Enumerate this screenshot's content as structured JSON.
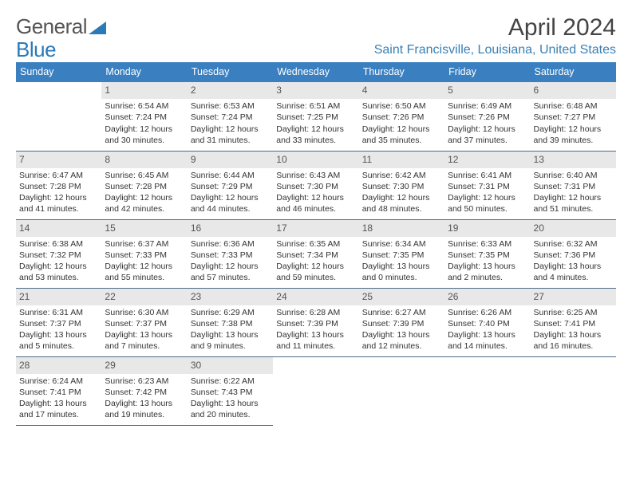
{
  "logo": {
    "text_a": "General",
    "text_b": "Blue"
  },
  "title": "April 2024",
  "location": "Saint Francisville, Louisiana, United States",
  "colors": {
    "header_bg": "#3a80c1",
    "header_fg": "#ffffff",
    "daynum_bg": "#e8e8e8",
    "daynum_fg": "#555555",
    "border": "#4d6a8a",
    "location": "#3a80b5",
    "logo_gray": "#555555",
    "logo_blue": "#2a7ab8"
  },
  "weekdays": [
    "Sunday",
    "Monday",
    "Tuesday",
    "Wednesday",
    "Thursday",
    "Friday",
    "Saturday"
  ],
  "weeks": [
    [
      {
        "empty": true
      },
      {
        "n": "1",
        "sr": "Sunrise: 6:54 AM",
        "ss": "Sunset: 7:24 PM",
        "d1": "Daylight: 12 hours",
        "d2": "and 30 minutes."
      },
      {
        "n": "2",
        "sr": "Sunrise: 6:53 AM",
        "ss": "Sunset: 7:24 PM",
        "d1": "Daylight: 12 hours",
        "d2": "and 31 minutes."
      },
      {
        "n": "3",
        "sr": "Sunrise: 6:51 AM",
        "ss": "Sunset: 7:25 PM",
        "d1": "Daylight: 12 hours",
        "d2": "and 33 minutes."
      },
      {
        "n": "4",
        "sr": "Sunrise: 6:50 AM",
        "ss": "Sunset: 7:26 PM",
        "d1": "Daylight: 12 hours",
        "d2": "and 35 minutes."
      },
      {
        "n": "5",
        "sr": "Sunrise: 6:49 AM",
        "ss": "Sunset: 7:26 PM",
        "d1": "Daylight: 12 hours",
        "d2": "and 37 minutes."
      },
      {
        "n": "6",
        "sr": "Sunrise: 6:48 AM",
        "ss": "Sunset: 7:27 PM",
        "d1": "Daylight: 12 hours",
        "d2": "and 39 minutes."
      }
    ],
    [
      {
        "n": "7",
        "sr": "Sunrise: 6:47 AM",
        "ss": "Sunset: 7:28 PM",
        "d1": "Daylight: 12 hours",
        "d2": "and 41 minutes."
      },
      {
        "n": "8",
        "sr": "Sunrise: 6:45 AM",
        "ss": "Sunset: 7:28 PM",
        "d1": "Daylight: 12 hours",
        "d2": "and 42 minutes."
      },
      {
        "n": "9",
        "sr": "Sunrise: 6:44 AM",
        "ss": "Sunset: 7:29 PM",
        "d1": "Daylight: 12 hours",
        "d2": "and 44 minutes."
      },
      {
        "n": "10",
        "sr": "Sunrise: 6:43 AM",
        "ss": "Sunset: 7:30 PM",
        "d1": "Daylight: 12 hours",
        "d2": "and 46 minutes."
      },
      {
        "n": "11",
        "sr": "Sunrise: 6:42 AM",
        "ss": "Sunset: 7:30 PM",
        "d1": "Daylight: 12 hours",
        "d2": "and 48 minutes."
      },
      {
        "n": "12",
        "sr": "Sunrise: 6:41 AM",
        "ss": "Sunset: 7:31 PM",
        "d1": "Daylight: 12 hours",
        "d2": "and 50 minutes."
      },
      {
        "n": "13",
        "sr": "Sunrise: 6:40 AM",
        "ss": "Sunset: 7:31 PM",
        "d1": "Daylight: 12 hours",
        "d2": "and 51 minutes."
      }
    ],
    [
      {
        "n": "14",
        "sr": "Sunrise: 6:38 AM",
        "ss": "Sunset: 7:32 PM",
        "d1": "Daylight: 12 hours",
        "d2": "and 53 minutes."
      },
      {
        "n": "15",
        "sr": "Sunrise: 6:37 AM",
        "ss": "Sunset: 7:33 PM",
        "d1": "Daylight: 12 hours",
        "d2": "and 55 minutes."
      },
      {
        "n": "16",
        "sr": "Sunrise: 6:36 AM",
        "ss": "Sunset: 7:33 PM",
        "d1": "Daylight: 12 hours",
        "d2": "and 57 minutes."
      },
      {
        "n": "17",
        "sr": "Sunrise: 6:35 AM",
        "ss": "Sunset: 7:34 PM",
        "d1": "Daylight: 12 hours",
        "d2": "and 59 minutes."
      },
      {
        "n": "18",
        "sr": "Sunrise: 6:34 AM",
        "ss": "Sunset: 7:35 PM",
        "d1": "Daylight: 13 hours",
        "d2": "and 0 minutes."
      },
      {
        "n": "19",
        "sr": "Sunrise: 6:33 AM",
        "ss": "Sunset: 7:35 PM",
        "d1": "Daylight: 13 hours",
        "d2": "and 2 minutes."
      },
      {
        "n": "20",
        "sr": "Sunrise: 6:32 AM",
        "ss": "Sunset: 7:36 PM",
        "d1": "Daylight: 13 hours",
        "d2": "and 4 minutes."
      }
    ],
    [
      {
        "n": "21",
        "sr": "Sunrise: 6:31 AM",
        "ss": "Sunset: 7:37 PM",
        "d1": "Daylight: 13 hours",
        "d2": "and 5 minutes."
      },
      {
        "n": "22",
        "sr": "Sunrise: 6:30 AM",
        "ss": "Sunset: 7:37 PM",
        "d1": "Daylight: 13 hours",
        "d2": "and 7 minutes."
      },
      {
        "n": "23",
        "sr": "Sunrise: 6:29 AM",
        "ss": "Sunset: 7:38 PM",
        "d1": "Daylight: 13 hours",
        "d2": "and 9 minutes."
      },
      {
        "n": "24",
        "sr": "Sunrise: 6:28 AM",
        "ss": "Sunset: 7:39 PM",
        "d1": "Daylight: 13 hours",
        "d2": "and 11 minutes."
      },
      {
        "n": "25",
        "sr": "Sunrise: 6:27 AM",
        "ss": "Sunset: 7:39 PM",
        "d1": "Daylight: 13 hours",
        "d2": "and 12 minutes."
      },
      {
        "n": "26",
        "sr": "Sunrise: 6:26 AM",
        "ss": "Sunset: 7:40 PM",
        "d1": "Daylight: 13 hours",
        "d2": "and 14 minutes."
      },
      {
        "n": "27",
        "sr": "Sunrise: 6:25 AM",
        "ss": "Sunset: 7:41 PM",
        "d1": "Daylight: 13 hours",
        "d2": "and 16 minutes."
      }
    ],
    [
      {
        "n": "28",
        "sr": "Sunrise: 6:24 AM",
        "ss": "Sunset: 7:41 PM",
        "d1": "Daylight: 13 hours",
        "d2": "and 17 minutes."
      },
      {
        "n": "29",
        "sr": "Sunrise: 6:23 AM",
        "ss": "Sunset: 7:42 PM",
        "d1": "Daylight: 13 hours",
        "d2": "and 19 minutes."
      },
      {
        "n": "30",
        "sr": "Sunrise: 6:22 AM",
        "ss": "Sunset: 7:43 PM",
        "d1": "Daylight: 13 hours",
        "d2": "and 20 minutes."
      },
      {
        "empty": true
      },
      {
        "empty": true
      },
      {
        "empty": true
      },
      {
        "empty": true
      }
    ]
  ]
}
